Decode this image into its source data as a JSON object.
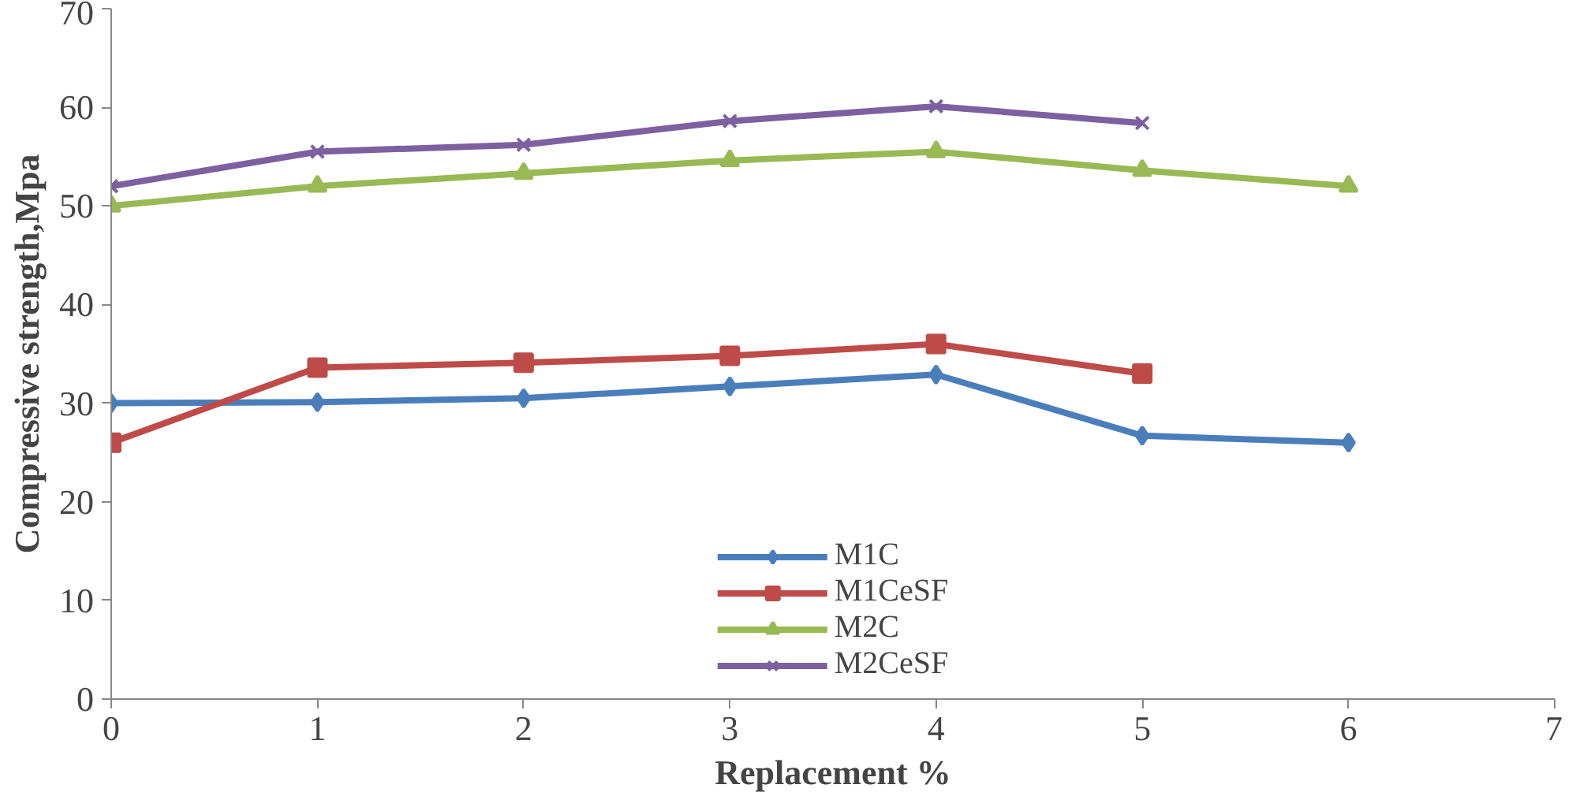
{
  "chart_data": {
    "type": "line",
    "xlabel": "Replacement %",
    "ylabel": "Compressive strength,Mpa",
    "xlim": [
      0,
      7
    ],
    "xticks": [
      0,
      1,
      2,
      3,
      4,
      5,
      6,
      7
    ],
    "ylim": [
      0,
      70
    ],
    "yticks": [
      0,
      10,
      20,
      30,
      40,
      50,
      60,
      70
    ],
    "grid": false,
    "legend": "bottom",
    "line_style": "solid",
    "series": [
      {
        "name": "M1C",
        "color": "#4a7ebb",
        "marker": "diamond",
        "x": [
          0,
          1,
          2,
          3,
          4,
          5,
          6
        ],
        "values": [
          30,
          30.1,
          30.5,
          31.7,
          32.9,
          26.7,
          26
        ]
      },
      {
        "name": "M1CeSF",
        "color": "#be4b48",
        "marker": "square",
        "x": [
          0,
          1,
          2,
          3,
          4,
          5
        ],
        "values": [
          26,
          33.6,
          34.1,
          34.8,
          36,
          33
        ]
      },
      {
        "name": "M2C",
        "color": "#98b954",
        "marker": "triangle",
        "x": [
          0,
          1,
          2,
          3,
          4,
          5,
          6
        ],
        "values": [
          50,
          52,
          53.3,
          54.6,
          55.5,
          53.6,
          52
        ]
      },
      {
        "name": "M2CeSF",
        "color": "#7d60a0",
        "marker": "cross",
        "x": [
          0,
          1,
          2,
          3,
          4,
          5
        ],
        "values": [
          52,
          55.5,
          56.2,
          58.6,
          60.1,
          58.4
        ]
      }
    ]
  }
}
